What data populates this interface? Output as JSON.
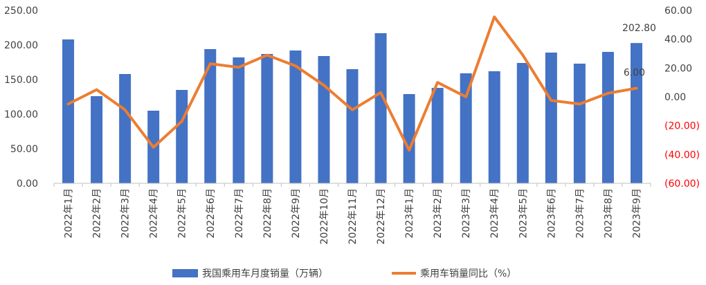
{
  "chart_data": {
    "type": "bar+line",
    "categories": [
      "2022年1月",
      "2022年2月",
      "2022年3月",
      "2022年4月",
      "2022年5月",
      "2022年6月",
      "2022年7月",
      "2022年8月",
      "2022年9月",
      "2022年10月",
      "2022年11月",
      "2022年12月",
      "2023年1月",
      "2023年2月",
      "2023年3月",
      "2023年4月",
      "2023年5月",
      "2023年6月",
      "2023年7月",
      "2023年8月",
      "2023年9月"
    ],
    "series": [
      {
        "name": "我国乘用车月度销量（万辆）",
        "type": "bar",
        "axis": "left",
        "color": "#4472C4",
        "values": [
          208,
          126,
          158,
          105,
          135,
          194,
          182,
          187,
          192,
          184,
          165,
          217,
          129,
          138,
          159,
          162,
          174,
          189,
          173,
          190,
          202.8
        ]
      },
      {
        "name": "乘用车销量同比（%）",
        "type": "line",
        "axis": "right",
        "color": "#ED7D31",
        "values": [
          -5.0,
          5.0,
          -9.0,
          -35.0,
          -17.0,
          23.0,
          20.5,
          29.0,
          21.5,
          8.0,
          -9.0,
          3.0,
          -37.0,
          10.0,
          0.0,
          55.5,
          29.0,
          -2.5,
          -5.0,
          2.5,
          6.0
        ]
      }
    ],
    "data_labels": [
      {
        "series": 0,
        "index": 20,
        "text": "202.80"
      },
      {
        "series": 1,
        "index": 20,
        "text": "6.00"
      }
    ],
    "y_left": {
      "ylim": [
        0,
        250
      ],
      "ticks": [
        "0.00",
        "50.00",
        "100.00",
        "150.00",
        "200.00",
        "250.00"
      ]
    },
    "y_right": {
      "ylim": [
        -60,
        60
      ],
      "ticks": [
        "(60.00)",
        "(40.00)",
        "(20.00)",
        "0.00",
        "20.00",
        "40.00",
        "60.00"
      ],
      "negative_color": "#FF0000"
    },
    "grid": false,
    "legend_position": "bottom"
  }
}
